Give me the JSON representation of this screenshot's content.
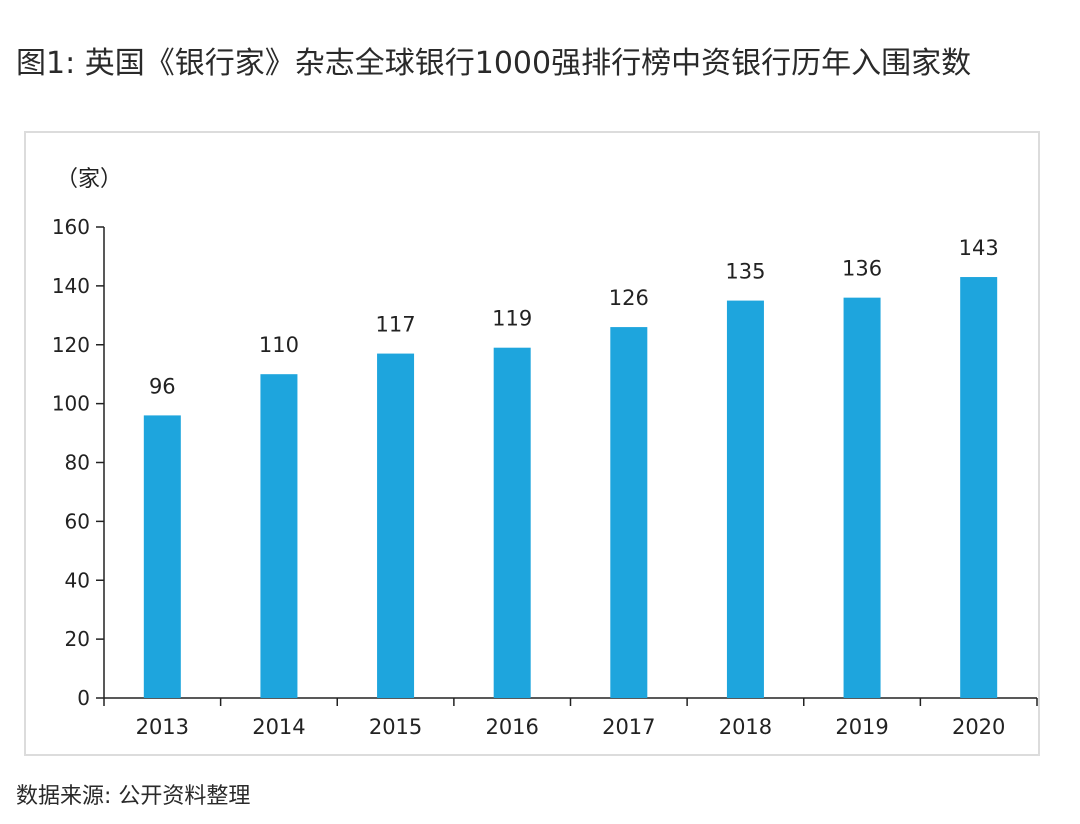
{
  "figure": {
    "title": "图1: 英国《银行家》杂志全球银行1000强排行榜中资银行历年入围家数",
    "source": "数据来源: 公开资料整理"
  },
  "chart_data": {
    "type": "bar",
    "categories": [
      "2013",
      "2014",
      "2015",
      "2016",
      "2017",
      "2018",
      "2019",
      "2020"
    ],
    "values": [
      96,
      110,
      117,
      119,
      126,
      135,
      136,
      143
    ],
    "data_labels": [
      "96",
      "110",
      "117",
      "119",
      "126",
      "135",
      "136",
      "143"
    ],
    "unit_label": "（家）",
    "title": "",
    "xlabel": "",
    "ylabel": "",
    "ylim": [
      0,
      160
    ],
    "yticks": [
      0,
      20,
      40,
      60,
      80,
      100,
      120,
      140,
      160
    ],
    "ytick_labels": [
      "0",
      "20",
      "40",
      "60",
      "80",
      "100",
      "120",
      "140",
      "160"
    ],
    "grid": false,
    "legend": "none",
    "bar_color": "#1ea5dd"
  }
}
